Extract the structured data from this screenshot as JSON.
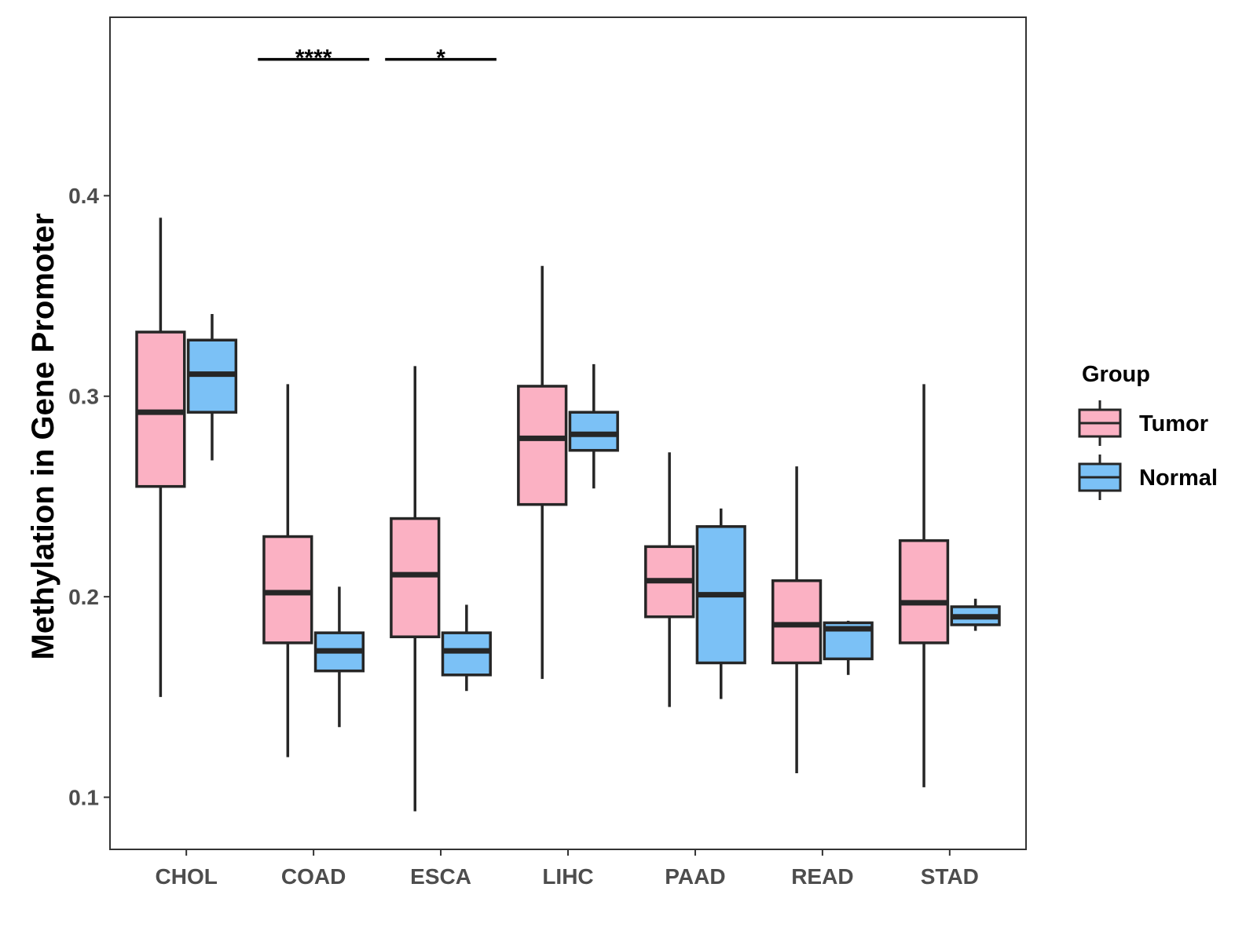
{
  "chart_data": {
    "type": "boxplot",
    "title": "",
    "xlabel": "",
    "ylabel": "Methylation in Gene Promoter",
    "ylim": [
      0.074,
      0.489
    ],
    "yticks": [
      0.1,
      0.2,
      0.3,
      0.4
    ],
    "ytick_labels": [
      "0.1",
      "0.2",
      "0.3",
      "0.4"
    ],
    "categories": [
      "CHOL",
      "COAD",
      "ESCA",
      "LIHC",
      "PAAD",
      "READ",
      "STAD"
    ],
    "legend": {
      "title": "Group",
      "placement": "right",
      "entries": [
        {
          "name": "Tumor",
          "color": "#fbb1c3"
        },
        {
          "name": "Normal",
          "color": "#7bc1f6"
        }
      ]
    },
    "series": [
      {
        "name": "Tumor",
        "color": "#fbb1c3",
        "boxes": [
          {
            "category": "CHOL",
            "whisker_low": 0.15,
            "q1": 0.255,
            "median": 0.292,
            "q3": 0.332,
            "whisker_high": 0.389
          },
          {
            "category": "COAD",
            "whisker_low": 0.12,
            "q1": 0.177,
            "median": 0.202,
            "q3": 0.23,
            "whisker_high": 0.306
          },
          {
            "category": "ESCA",
            "whisker_low": 0.093,
            "q1": 0.18,
            "median": 0.211,
            "q3": 0.239,
            "whisker_high": 0.315
          },
          {
            "category": "LIHC",
            "whisker_low": 0.159,
            "q1": 0.246,
            "median": 0.279,
            "q3": 0.305,
            "whisker_high": 0.365
          },
          {
            "category": "PAAD",
            "whisker_low": 0.145,
            "q1": 0.19,
            "median": 0.208,
            "q3": 0.225,
            "whisker_high": 0.272
          },
          {
            "category": "READ",
            "whisker_low": 0.112,
            "q1": 0.167,
            "median": 0.186,
            "q3": 0.208,
            "whisker_high": 0.265
          },
          {
            "category": "STAD",
            "whisker_low": 0.105,
            "q1": 0.177,
            "median": 0.197,
            "q3": 0.228,
            "whisker_high": 0.306
          }
        ]
      },
      {
        "name": "Normal",
        "color": "#7bc1f6",
        "boxes": [
          {
            "category": "CHOL",
            "whisker_low": 0.268,
            "q1": 0.292,
            "median": 0.311,
            "q3": 0.328,
            "whisker_high": 0.341
          },
          {
            "category": "COAD",
            "whisker_low": 0.135,
            "q1": 0.163,
            "median": 0.173,
            "q3": 0.182,
            "whisker_high": 0.205
          },
          {
            "category": "ESCA",
            "whisker_low": 0.153,
            "q1": 0.161,
            "median": 0.173,
            "q3": 0.182,
            "whisker_high": 0.196
          },
          {
            "category": "LIHC",
            "whisker_low": 0.254,
            "q1": 0.273,
            "median": 0.281,
            "q3": 0.292,
            "whisker_high": 0.316
          },
          {
            "category": "PAAD",
            "whisker_low": 0.149,
            "q1": 0.167,
            "median": 0.201,
            "q3": 0.235,
            "whisker_high": 0.244
          },
          {
            "category": "READ",
            "whisker_low": 0.161,
            "q1": 0.169,
            "median": 0.184,
            "q3": 0.187,
            "whisker_high": 0.188
          },
          {
            "category": "STAD",
            "whisker_low": 0.183,
            "q1": 0.186,
            "median": 0.19,
            "q3": 0.195,
            "whisker_high": 0.199
          }
        ]
      }
    ],
    "annotations": [
      {
        "category": "COAD",
        "label": "****",
        "y": 0.468
      },
      {
        "category": "ESCA",
        "label": "*",
        "y": 0.468
      }
    ]
  }
}
